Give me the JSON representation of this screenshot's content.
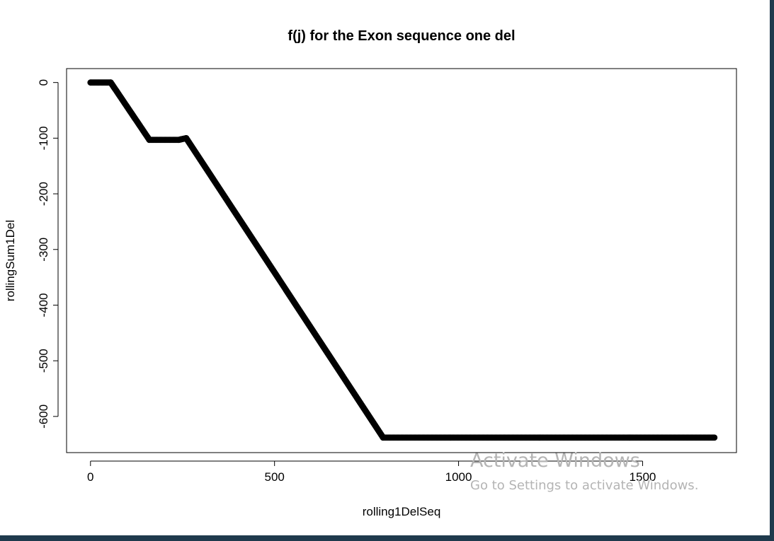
{
  "chart_data": {
    "type": "scatter",
    "title": "f(j) for the Exon sequence one del",
    "xlabel": "rolling1DelSeq",
    "ylabel": "rollingSum1Del",
    "xlim": [
      -65,
      1755
    ],
    "ylim": [
      -665,
      25
    ],
    "xticks": [
      0,
      500,
      1000,
      1500
    ],
    "yticks": [
      0,
      -100,
      -200,
      -300,
      -400,
      -500,
      -600
    ],
    "xtick_labels": [
      "0",
      "500",
      "1000",
      "1500"
    ],
    "ytick_labels": [
      "0",
      "-100",
      "-200",
      "-300",
      "-400",
      "-500",
      "-600"
    ],
    "grid": false,
    "point_color": "#000000",
    "series": [
      {
        "x": [
          0,
          55,
          160,
          240,
          260,
          795,
          1695
        ],
        "y": [
          0,
          0,
          -103,
          -103,
          -100,
          -638,
          -638
        ]
      }
    ]
  },
  "watermark": {
    "title": "Activate Windows",
    "subtitle": "Go to Settings to activate Windows."
  }
}
